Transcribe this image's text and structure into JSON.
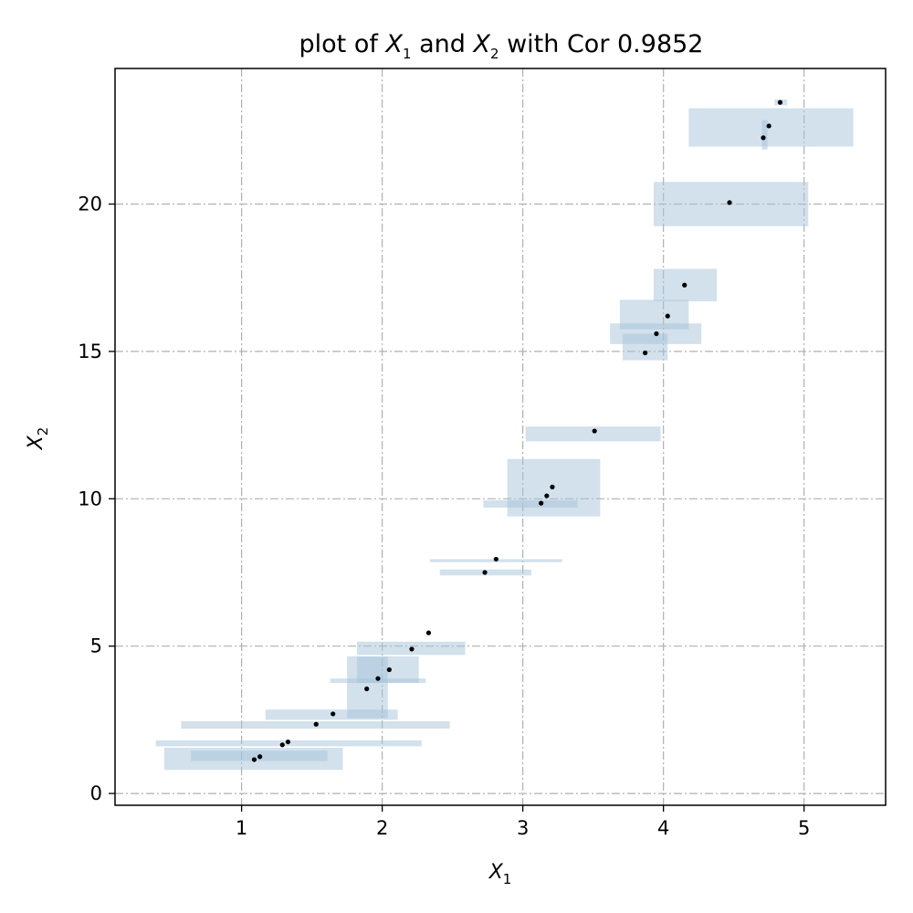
{
  "chart_data": {
    "type": "scatter",
    "title": {
      "prefix": "plot of ",
      "v1": "X",
      "v1_sub": "1",
      "mid": " and ",
      "v2": "X",
      "v2_sub": "2",
      "suffix": " with Cor 0.9852"
    },
    "xlabel": {
      "base": "X",
      "sub": "1"
    },
    "ylabel": {
      "base": "X",
      "sub": "2"
    },
    "xlim": [
      0.1,
      5.58
    ],
    "ylim": [
      -0.4,
      24.6
    ],
    "xticks": [
      1,
      2,
      3,
      4,
      5
    ],
    "yticks": [
      0,
      5,
      10,
      15,
      20
    ],
    "grid": true,
    "colors": {
      "point": "#000000",
      "box": "#a6c3da",
      "grid": "#b0b0b0"
    },
    "points": [
      {
        "x": 1.09,
        "y": 1.15
      },
      {
        "x": 1.13,
        "y": 1.25
      },
      {
        "x": 1.29,
        "y": 1.65
      },
      {
        "x": 1.33,
        "y": 1.75
      },
      {
        "x": 1.53,
        "y": 2.35
      },
      {
        "x": 1.65,
        "y": 2.7
      },
      {
        "x": 1.89,
        "y": 3.55
      },
      {
        "x": 1.97,
        "y": 3.9
      },
      {
        "x": 2.05,
        "y": 4.2
      },
      {
        "x": 2.21,
        "y": 4.9
      },
      {
        "x": 2.33,
        "y": 5.45
      },
      {
        "x": 2.73,
        "y": 7.5
      },
      {
        "x": 2.81,
        "y": 7.95
      },
      {
        "x": 3.13,
        "y": 9.85
      },
      {
        "x": 3.17,
        "y": 10.1
      },
      {
        "x": 3.21,
        "y": 10.4
      },
      {
        "x": 3.51,
        "y": 12.3
      },
      {
        "x": 3.87,
        "y": 14.95
      },
      {
        "x": 3.95,
        "y": 15.6
      },
      {
        "x": 4.03,
        "y": 16.2
      },
      {
        "x": 4.15,
        "y": 17.25
      },
      {
        "x": 4.47,
        "y": 20.05
      },
      {
        "x": 4.71,
        "y": 22.25
      },
      {
        "x": 4.75,
        "y": 22.65
      },
      {
        "x": 4.83,
        "y": 23.45
      }
    ],
    "intervals": [
      {
        "x0": 0.45,
        "x1": 1.72,
        "y0": 0.8,
        "y1": 1.55
      },
      {
        "x0": 0.64,
        "x1": 1.61,
        "y0": 1.1,
        "y1": 1.45
      },
      {
        "x0": 0.39,
        "x1": 2.28,
        "y0": 1.6,
        "y1": 1.8
      },
      {
        "x0": 0.57,
        "x1": 2.48,
        "y0": 2.2,
        "y1": 2.45
      },
      {
        "x0": 1.17,
        "x1": 2.11,
        "y0": 2.5,
        "y1": 2.85
      },
      {
        "x0": 1.75,
        "x1": 2.04,
        "y0": 2.55,
        "y1": 4.65
      },
      {
        "x0": 1.63,
        "x1": 2.31,
        "y0": 3.75,
        "y1": 3.9
      },
      {
        "x0": 1.82,
        "x1": 2.26,
        "y0": 3.75,
        "y1": 4.65
      },
      {
        "x0": 1.82,
        "x1": 2.59,
        "y0": 4.7,
        "y1": 5.15
      },
      {
        "x0": 2.41,
        "x1": 3.06,
        "y0": 7.4,
        "y1": 7.6
      },
      {
        "x0": 2.34,
        "x1": 3.28,
        "y0": 7.85,
        "y1": 7.95
      },
      {
        "x0": 2.89,
        "x1": 3.55,
        "y0": 9.4,
        "y1": 11.35
      },
      {
        "x0": 2.72,
        "x1": 3.39,
        "y0": 9.7,
        "y1": 9.95
      },
      {
        "x0": 3.02,
        "x1": 3.98,
        "y0": 11.95,
        "y1": 12.45
      },
      {
        "x0": 3.71,
        "x1": 4.03,
        "y0": 14.7,
        "y1": 15.6
      },
      {
        "x0": 3.62,
        "x1": 4.27,
        "y0": 15.25,
        "y1": 15.95
      },
      {
        "x0": 3.69,
        "x1": 4.18,
        "y0": 15.75,
        "y1": 16.75
      },
      {
        "x0": 3.93,
        "x1": 4.38,
        "y0": 16.7,
        "y1": 17.8
      },
      {
        "x0": 3.93,
        "x1": 5.03,
        "y0": 19.25,
        "y1": 20.75
      },
      {
        "x0": 4.18,
        "x1": 5.35,
        "y0": 21.95,
        "y1": 23.25
      },
      {
        "x0": 4.7,
        "x1": 4.74,
        "y0": 21.85,
        "y1": 22.85
      },
      {
        "x0": 4.79,
        "x1": 4.88,
        "y0": 23.35,
        "y1": 23.55
      }
    ]
  }
}
